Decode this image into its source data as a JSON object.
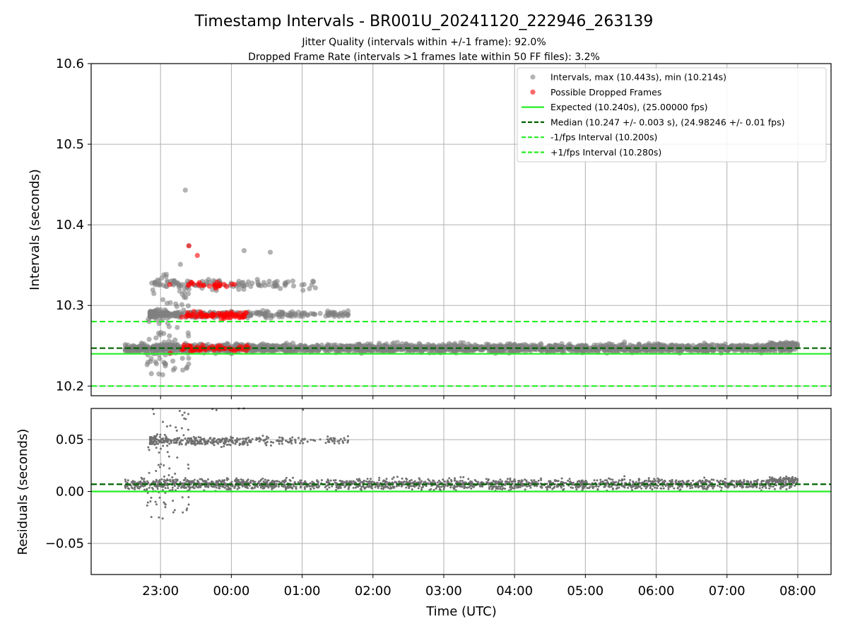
{
  "title": "Timestamp Intervals - BR001U_20241120_222946_263139",
  "subtitle_1": "Jitter Quality (intervals within +/-1 frame): 92.0%",
  "subtitle_2": "Dropped Frame Rate (intervals >1 frames late within 50 FF files): 3.2%",
  "colors": {
    "points": "#808080",
    "dropped": "#ff0000",
    "expected": "#22ee22",
    "median": "#006400",
    "fps_interval": "#22ee22",
    "grid": "#b0b0b0"
  },
  "chart_data": [
    {
      "type": "scatter",
      "ylabel": "Intervals (seconds)",
      "xlabel": "",
      "x_unit": "hours since 00:00 UTC",
      "xlim_hours": [
        -1.98,
        8.47
      ],
      "ylim": [
        10.188,
        10.6
      ],
      "yticks": [
        10.2,
        10.3,
        10.4,
        10.5,
        10.6
      ],
      "ytick_labels": [
        "10.2",
        "10.3",
        "10.4",
        "10.5",
        "10.6"
      ],
      "grid": true,
      "legend_position": "upper right",
      "legend": [
        {
          "key": "intervals",
          "label": "Intervals, max (10.443s), min (10.214s)",
          "marker": "dot",
          "color": "#808080"
        },
        {
          "key": "dropped",
          "label": "Possible Dropped Frames",
          "marker": "dot",
          "color": "#ff0000"
        },
        {
          "key": "expected",
          "label": "Expected (10.240s), (25.00000 fps)",
          "marker": "solid",
          "color": "#22ee22"
        },
        {
          "key": "median",
          "label": "Median (10.247 +/- 0.003 s), (24.98246 +/- 0.01 fps)",
          "marker": "dashed",
          "color": "#006400"
        },
        {
          "key": "minus_fps",
          "label": "-1/fps Interval (10.200s)",
          "marker": "dashed",
          "color": "#22ee22"
        },
        {
          "key": "plus_fps",
          "label": "+1/fps Interval (10.280s)",
          "marker": "dashed",
          "color": "#22ee22"
        }
      ],
      "reference_lines": {
        "expected": 10.24,
        "median": 10.247,
        "minus_fps": 10.2,
        "plus_fps": 10.28
      },
      "series": [
        {
          "name": "Intervals, max (10.443s), min (10.214s)",
          "band_x_range": [
            -1.5,
            8.0
          ],
          "band_y_center": 10.247,
          "band_y_spread": 0.005
        },
        {
          "name": "Possible Dropped Frames",
          "clusters_y": [
            10.247,
            10.288,
            10.326
          ]
        }
      ],
      "notable_points": [
        {
          "x": -0.65,
          "y": 10.443
        },
        {
          "x": -0.6,
          "y": 10.374
        },
        {
          "x": -0.72,
          "y": 10.351
        },
        {
          "x": 0.55,
          "y": 10.366
        },
        {
          "x": 0.18,
          "y": 10.368
        },
        {
          "x": -0.97,
          "y": 10.214
        }
      ]
    },
    {
      "type": "scatter",
      "ylabel": "Residuals (seconds)",
      "xlabel": "Time (UTC)",
      "xlim_hours": [
        -1.98,
        8.47
      ],
      "ylim": [
        -0.08,
        0.08
      ],
      "yticks": [
        -0.05,
        0.0,
        0.05
      ],
      "ytick_labels": [
        "−0.05",
        "0.00",
        "0.05"
      ],
      "xticks_hours": [
        -1,
        0,
        1,
        2,
        3,
        4,
        5,
        6,
        7,
        8
      ],
      "xtick_labels": [
        "23:00",
        "00:00",
        "01:00",
        "02:00",
        "03:00",
        "04:00",
        "05:00",
        "06:00",
        "07:00",
        "08:00"
      ],
      "grid": true,
      "reference_lines": {
        "zero": 0.0,
        "median": 0.007
      }
    }
  ]
}
